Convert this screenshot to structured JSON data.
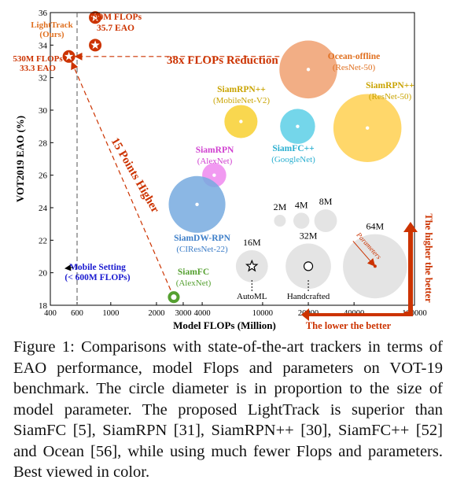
{
  "chart_data": {
    "type": "scatter",
    "xlabel": "Model FLOPs (Million)",
    "ylabel": "VOT2019   EAO (%)",
    "x_scale": "log",
    "xlim": [
      400,
      100000
    ],
    "ylim": [
      18,
      36
    ],
    "x_ticks": [
      "400",
      "600",
      "1000",
      "2000",
      "3000",
      "4000",
      "10000",
      "20000",
      "40000",
      "100000"
    ],
    "x_tick_values": [
      400,
      600,
      1000,
      2000,
      3000,
      4000,
      10000,
      20000,
      40000,
      100000
    ],
    "y_ticks": [
      "18",
      "20",
      "22",
      "24",
      "26",
      "28",
      "30",
      "32",
      "34",
      "36"
    ],
    "y_tick_values": [
      18,
      20,
      22,
      24,
      26,
      28,
      30,
      32,
      34,
      36
    ],
    "points": [
      {
        "flops": 790,
        "eao": 35.7,
        "params_m": 2.0,
        "color": "#cc3300",
        "marker": "star",
        "label": ""
      },
      {
        "flops": 790,
        "eao": 34.0,
        "params_m": 2.0,
        "color": "#cc3300",
        "marker": "star",
        "label": ""
      },
      {
        "flops": 530,
        "eao": 33.3,
        "params_m": 2.0,
        "color": "#cc3300",
        "marker": "star",
        "label": ""
      },
      {
        "flops": 20000,
        "eao": 32.5,
        "params_m": 52,
        "color": "#f0a070",
        "marker": "circle",
        "name": "Ocean-offline",
        "sub": "(ResNet-50)"
      },
      {
        "flops": 7200,
        "eao": 29.3,
        "params_m": 17,
        "color": "#f8d030",
        "marker": "circle",
        "name": "SiamRPN++",
        "sub": "(MobileNet-V2)"
      },
      {
        "flops": 17000,
        "eao": 29.0,
        "params_m": 19,
        "color": "#5ccfe6",
        "marker": "circle",
        "name": "SiamFC++",
        "sub": "(GoogleNet)"
      },
      {
        "flops": 49000,
        "eao": 28.9,
        "params_m": 72,
        "color": "#ffd050",
        "marker": "circle",
        "name": "SiamRPN++",
        "sub": "(ResNet-50)"
      },
      {
        "flops": 4800,
        "eao": 26.0,
        "params_m": 9,
        "color": "#ee88ee",
        "marker": "circle",
        "name": "SiamRPN",
        "sub": "(AlexNet)"
      },
      {
        "flops": 3700,
        "eao": 24.2,
        "params_m": 50,
        "color": "#77aadf",
        "marker": "circle",
        "name": "SiamDW-RPN",
        "sub": "(CIResNet-22)"
      },
      {
        "flops": 2600,
        "eao": 18.5,
        "params_m": 2.2,
        "color": "#55a030",
        "marker": "circle",
        "name": "SiamFC",
        "sub": "(AlexNet)"
      }
    ],
    "size_legend": [
      {
        "label": "2M",
        "flops": 13000,
        "eao": 23.2
      },
      {
        "label": "4M",
        "flops": 18000,
        "eao": 23.2
      },
      {
        "label": "8M",
        "flops": 26000,
        "eao": 23.2
      },
      {
        "label": "16M",
        "flops": 8500,
        "eao": 20.4
      },
      {
        "label": "32M",
        "flops": 20000,
        "eao": 20.4
      },
      {
        "label": "64M",
        "flops": 55000,
        "eao": 20.4
      }
    ],
    "annotations": {
      "lighttrack": "LightTrack\n(Ours)",
      "top_point": "790M FLOPs\n35.7 EAO",
      "left_point": "530M FLOPs\n33.3 EAO",
      "reduction": "38x FLOPs Reduction",
      "higher": "15 Points Higher",
      "mobile": "Mobile Setting\n(< 600M FLOPs)",
      "automl": "AutoML",
      "handcrafted": "Handcrafted",
      "parameters": "Parameters",
      "better_y": "The higher the better",
      "better_x": "The lower the better"
    }
  },
  "caption": "Figure 1: Comparisons with state-of-the-art trackers in terms of EAO performance, model Flops and parameters on VOT-19 benchmark. The circle diameter is in proportion to the size of model parameter. The proposed LightTrack is superior than SiamFC [5], SiamRPN [31], SiamRPN++ [30], SiamFC++ [52] and Ocean [56], while using much fewer Flops and parameters. Best viewed in color."
}
